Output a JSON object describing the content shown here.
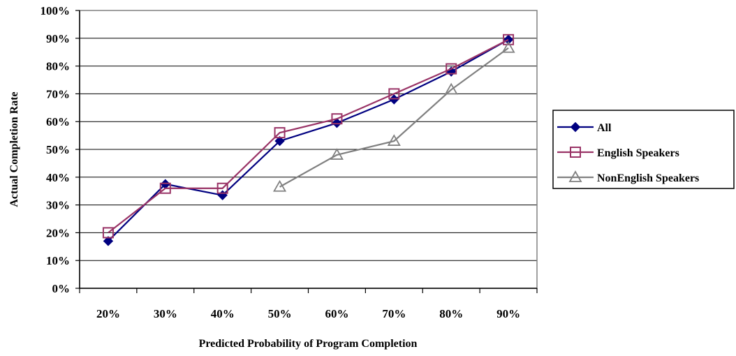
{
  "chart_data": {
    "type": "line",
    "xlabel": "Predicted Probability of Program Completion",
    "ylabel": "Actual Completion Rate",
    "categories": [
      "20%",
      "30%",
      "40%",
      "50%",
      "60%",
      "70%",
      "80%",
      "90%"
    ],
    "y_ticks": [
      "0%",
      "10%",
      "20%",
      "30%",
      "40%",
      "50%",
      "60%",
      "70%",
      "80%",
      "90%",
      "100%"
    ],
    "ylim": [
      0,
      100
    ],
    "grid": "horizontal",
    "legend_position": "right",
    "series": [
      {
        "name": "All",
        "color": "#000080",
        "marker": "diamond",
        "values": [
          17,
          37.5,
          33.5,
          53,
          59.5,
          68,
          78,
          89.5
        ]
      },
      {
        "name": "English Speakers",
        "color": "#993366",
        "marker": "square",
        "values": [
          20,
          36,
          36,
          56,
          61,
          70,
          79,
          89.5
        ]
      },
      {
        "name": "NonEnglish Speakers",
        "color": "#808080",
        "marker": "triangle",
        "values": [
          null,
          null,
          null,
          36.5,
          48,
          53,
          71.5,
          86.5
        ]
      }
    ]
  }
}
